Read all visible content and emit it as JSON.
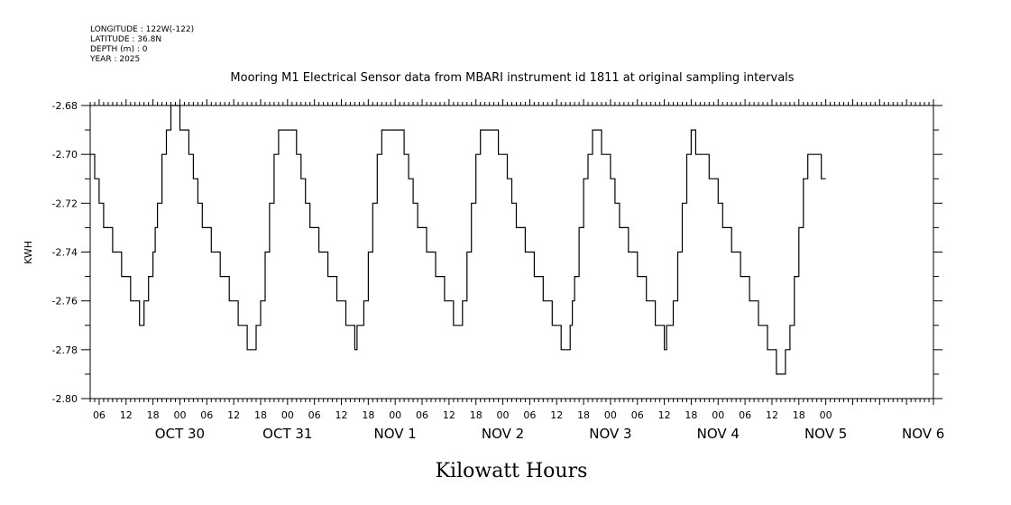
{
  "header": {
    "meta_lines": [
      "LONGITUDE : 122W(-122)",
      "LATITUDE : 36.8N",
      "DEPTH (m) : 0",
      "YEAR : 2025"
    ]
  },
  "chart_data": {
    "type": "line",
    "title": "Mooring M1 Electrical Sensor data from MBARI instrument id 1811 at original sampling intervals",
    "xlabel": "Kilowatt Hours",
    "ylabel": "KWH",
    "ylim": [
      -2.8,
      -2.68
    ],
    "y_ticks": [
      "-2.68",
      "-2.70",
      "-2.72",
      "-2.74",
      "-2.76",
      "-2.78",
      "-2.80"
    ],
    "xlim": [
      "2025-10-29T04:00",
      "2025-11-06T00:00"
    ],
    "x_hour_labels": [
      "06",
      "12",
      "18",
      "00",
      "06",
      "12",
      "18",
      "00",
      "06",
      "12",
      "18",
      "00",
      "06",
      "12",
      "18",
      "00",
      "06",
      "12",
      "18",
      "00",
      "06",
      "12",
      "18",
      "00",
      "06",
      "12",
      "18",
      "00"
    ],
    "x_date_labels": [
      "OCT 30",
      "OCT 31",
      "NOV  1",
      "NOV  2",
      "NOV  3",
      "NOV  4",
      "NOV  5",
      "NOV  6"
    ],
    "grid": false,
    "series": [
      {
        "points": [
          [
            "2025-10-29T04:00",
            -2.7
          ],
          [
            "2025-10-29T05:00",
            -2.71
          ],
          [
            "2025-10-29T06:00",
            -2.72
          ],
          [
            "2025-10-29T07:00",
            -2.73
          ],
          [
            "2025-10-29T09:00",
            -2.74
          ],
          [
            "2025-10-29T11:00",
            -2.75
          ],
          [
            "2025-10-29T13:00",
            -2.76
          ],
          [
            "2025-10-29T15:00",
            -2.77
          ],
          [
            "2025-10-29T16:00",
            -2.76
          ],
          [
            "2025-10-29T17:00",
            -2.75
          ],
          [
            "2025-10-29T18:00",
            -2.74
          ],
          [
            "2025-10-29T18:30",
            -2.73
          ],
          [
            "2025-10-29T19:00",
            -2.72
          ],
          [
            "2025-10-29T20:00",
            -2.7
          ],
          [
            "2025-10-29T21:00",
            -2.69
          ],
          [
            "2025-10-29T22:00",
            -2.68
          ],
          [
            "2025-10-30T00:00",
            -2.69
          ],
          [
            "2025-10-30T02:00",
            -2.7
          ],
          [
            "2025-10-30T03:00",
            -2.71
          ],
          [
            "2025-10-30T04:00",
            -2.72
          ],
          [
            "2025-10-30T05:00",
            -2.73
          ],
          [
            "2025-10-30T07:00",
            -2.74
          ],
          [
            "2025-10-30T09:00",
            -2.75
          ],
          [
            "2025-10-30T11:00",
            -2.76
          ],
          [
            "2025-10-30T13:00",
            -2.77
          ],
          [
            "2025-10-30T15:00",
            -2.78
          ],
          [
            "2025-10-30T17:00",
            -2.77
          ],
          [
            "2025-10-30T18:00",
            -2.76
          ],
          [
            "2025-10-30T19:00",
            -2.74
          ],
          [
            "2025-10-30T20:00",
            -2.72
          ],
          [
            "2025-10-30T21:00",
            -2.7
          ],
          [
            "2025-10-30T22:00",
            -2.69
          ],
          [
            "2025-10-31T02:00",
            -2.7
          ],
          [
            "2025-10-31T03:00",
            -2.71
          ],
          [
            "2025-10-31T04:00",
            -2.72
          ],
          [
            "2025-10-31T05:00",
            -2.73
          ],
          [
            "2025-10-31T07:00",
            -2.74
          ],
          [
            "2025-10-31T09:00",
            -2.75
          ],
          [
            "2025-10-31T11:00",
            -2.76
          ],
          [
            "2025-10-31T13:00",
            -2.77
          ],
          [
            "2025-10-31T15:00",
            -2.78
          ],
          [
            "2025-10-31T15:30",
            -2.77
          ],
          [
            "2025-10-31T17:00",
            -2.76
          ],
          [
            "2025-10-31T18:00",
            -2.74
          ],
          [
            "2025-10-31T19:00",
            -2.72
          ],
          [
            "2025-10-31T20:00",
            -2.7
          ],
          [
            "2025-10-31T21:00",
            -2.69
          ],
          [
            "2025-11-01T02:00",
            -2.7
          ],
          [
            "2025-11-01T03:00",
            -2.71
          ],
          [
            "2025-11-01T04:00",
            -2.72
          ],
          [
            "2025-11-01T05:00",
            -2.73
          ],
          [
            "2025-11-01T07:00",
            -2.74
          ],
          [
            "2025-11-01T09:00",
            -2.75
          ],
          [
            "2025-11-01T11:00",
            -2.76
          ],
          [
            "2025-11-01T13:00",
            -2.77
          ],
          [
            "2025-11-01T15:00",
            -2.76
          ],
          [
            "2025-11-01T16:00",
            -2.74
          ],
          [
            "2025-11-01T17:00",
            -2.72
          ],
          [
            "2025-11-01T18:00",
            -2.7
          ],
          [
            "2025-11-01T19:00",
            -2.69
          ],
          [
            "2025-11-01T23:00",
            -2.7
          ],
          [
            "2025-11-02T01:00",
            -2.71
          ],
          [
            "2025-11-02T02:00",
            -2.72
          ],
          [
            "2025-11-02T03:00",
            -2.73
          ],
          [
            "2025-11-02T05:00",
            -2.74
          ],
          [
            "2025-11-02T07:00",
            -2.75
          ],
          [
            "2025-11-02T09:00",
            -2.76
          ],
          [
            "2025-11-02T11:00",
            -2.77
          ],
          [
            "2025-11-02T13:00",
            -2.78
          ],
          [
            "2025-11-02T15:00",
            -2.77
          ],
          [
            "2025-11-02T15:30",
            -2.76
          ],
          [
            "2025-11-02T16:00",
            -2.75
          ],
          [
            "2025-11-02T17:00",
            -2.73
          ],
          [
            "2025-11-02T18:00",
            -2.71
          ],
          [
            "2025-11-02T19:00",
            -2.7
          ],
          [
            "2025-11-02T20:00",
            -2.69
          ],
          [
            "2025-11-02T22:00",
            -2.7
          ],
          [
            "2025-11-03T00:00",
            -2.71
          ],
          [
            "2025-11-03T01:00",
            -2.72
          ],
          [
            "2025-11-03T02:00",
            -2.73
          ],
          [
            "2025-11-03T04:00",
            -2.74
          ],
          [
            "2025-11-03T06:00",
            -2.75
          ],
          [
            "2025-11-03T08:00",
            -2.76
          ],
          [
            "2025-11-03T10:00",
            -2.77
          ],
          [
            "2025-11-03T12:00",
            -2.78
          ],
          [
            "2025-11-03T12:30",
            -2.77
          ],
          [
            "2025-11-03T14:00",
            -2.76
          ],
          [
            "2025-11-03T15:00",
            -2.74
          ],
          [
            "2025-11-03T16:00",
            -2.72
          ],
          [
            "2025-11-03T17:00",
            -2.7
          ],
          [
            "2025-11-03T18:00",
            -2.69
          ],
          [
            "2025-11-03T19:00",
            -2.7
          ],
          [
            "2025-11-03T22:00",
            -2.71
          ],
          [
            "2025-11-04T00:00",
            -2.72
          ],
          [
            "2025-11-04T01:00",
            -2.73
          ],
          [
            "2025-11-04T03:00",
            -2.74
          ],
          [
            "2025-11-04T05:00",
            -2.75
          ],
          [
            "2025-11-04T07:00",
            -2.76
          ],
          [
            "2025-11-04T09:00",
            -2.77
          ],
          [
            "2025-11-04T11:00",
            -2.78
          ],
          [
            "2025-11-04T13:00",
            -2.79
          ],
          [
            "2025-11-04T15:00",
            -2.78
          ],
          [
            "2025-11-04T16:00",
            -2.77
          ],
          [
            "2025-11-04T17:00",
            -2.75
          ],
          [
            "2025-11-04T18:00",
            -2.73
          ],
          [
            "2025-11-04T19:00",
            -2.71
          ],
          [
            "2025-11-04T20:00",
            -2.7
          ],
          [
            "2025-11-04T23:00",
            -2.71
          ],
          [
            "2025-11-05T00:00",
            -2.71
          ]
        ]
      }
    ]
  }
}
